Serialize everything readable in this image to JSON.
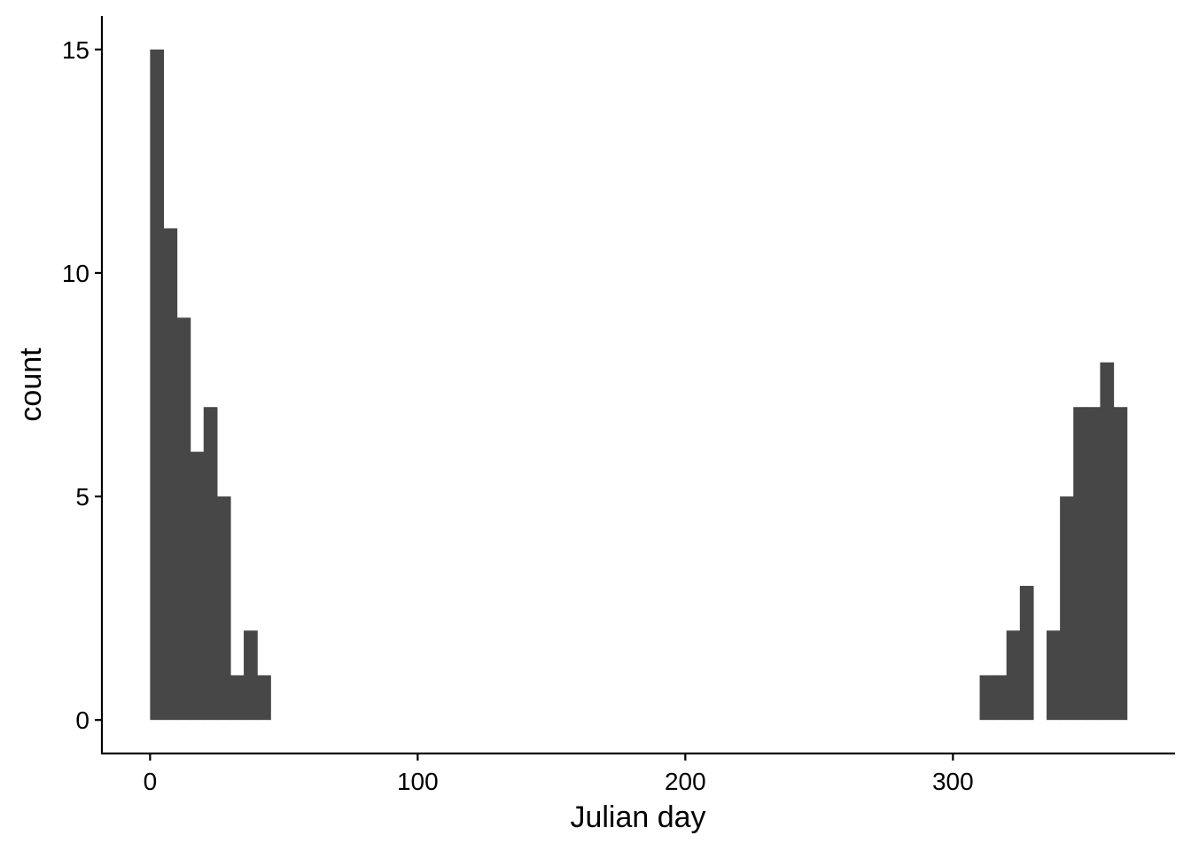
{
  "chart_data": {
    "type": "bar",
    "subtype": "histogram",
    "xlabel": "Julian day",
    "ylabel": "count",
    "xlim": [
      -18,
      383
    ],
    "ylim": [
      -0.75,
      15.75
    ],
    "x_ticks": [
      0,
      100,
      200,
      300
    ],
    "y_ticks": [
      0,
      5,
      10,
      15
    ],
    "grid": false,
    "legend": "none",
    "bar_color": "#474747",
    "bins": [
      {
        "x_start": 0,
        "x_end": 5,
        "count": 15
      },
      {
        "x_start": 5,
        "x_end": 10,
        "count": 11
      },
      {
        "x_start": 10,
        "x_end": 15,
        "count": 9
      },
      {
        "x_start": 15,
        "x_end": 20,
        "count": 6
      },
      {
        "x_start": 20,
        "x_end": 25,
        "count": 7
      },
      {
        "x_start": 25,
        "x_end": 30,
        "count": 5
      },
      {
        "x_start": 30,
        "x_end": 35,
        "count": 1
      },
      {
        "x_start": 35,
        "x_end": 40,
        "count": 2
      },
      {
        "x_start": 40,
        "x_end": 45,
        "count": 1
      },
      {
        "x_start": 310,
        "x_end": 315,
        "count": 1
      },
      {
        "x_start": 315,
        "x_end": 320,
        "count": 1
      },
      {
        "x_start": 320,
        "x_end": 325,
        "count": 2
      },
      {
        "x_start": 325,
        "x_end": 330,
        "count": 3
      },
      {
        "x_start": 330,
        "x_end": 335,
        "count": 0
      },
      {
        "x_start": 335,
        "x_end": 340,
        "count": 2
      },
      {
        "x_start": 340,
        "x_end": 345,
        "count": 5
      },
      {
        "x_start": 345,
        "x_end": 350,
        "count": 7
      },
      {
        "x_start": 350,
        "x_end": 355,
        "count": 7
      },
      {
        "x_start": 355,
        "x_end": 360,
        "count": 8
      },
      {
        "x_start": 360,
        "x_end": 365,
        "count": 7
      }
    ]
  }
}
